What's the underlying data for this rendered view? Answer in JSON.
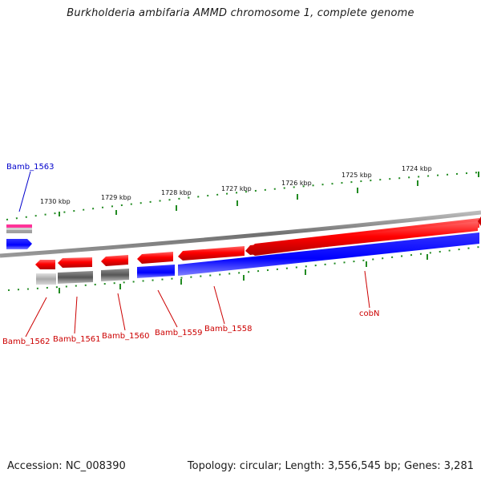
{
  "title": "Burkholderia ambifaria AMMD chromosome 1, complete genome",
  "footer": {
    "accession": "Accession: NC_008390",
    "summary": "Topology: circular; Length: 3,556,545 bp; Genes: 3,281"
  },
  "ruler_ticks": [
    "1730 kbp",
    "1729 kbp",
    "1728 kbp",
    "1727 kbp",
    "1726 kbp",
    "1725 kbp",
    "1724 kbp"
  ],
  "gene_labels": [
    {
      "text": "Bamb_1563",
      "color": "#0000cc"
    },
    {
      "text": "Bamb_1562",
      "color": "#cc0000"
    },
    {
      "text": "Bamb_1561",
      "color": "#cc0000"
    },
    {
      "text": "Bamb_1560",
      "color": "#cc0000"
    },
    {
      "text": "Bamb_1559",
      "color": "#cc0000"
    },
    {
      "text": "Bamb_1558",
      "color": "#cc0000"
    },
    {
      "text": "cobN",
      "color": "#cc0000"
    }
  ],
  "colors": {
    "cds": "#ff0000",
    "gene": "#0000ff",
    "pseudo": "#606060",
    "misc": "#ff3399",
    "tick": "#228b22",
    "backbone": "#808080"
  }
}
